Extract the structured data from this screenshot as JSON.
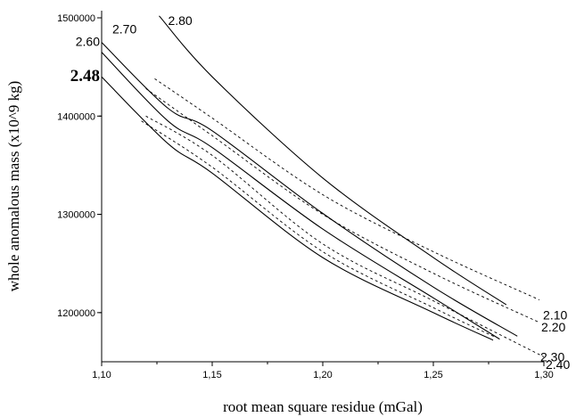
{
  "chart_data": {
    "type": "line",
    "xlabel": "root mean square residue (mGal)",
    "ylabel": "whole anomalous mass (x10^9  kg)",
    "xlim": [
      1.1,
      1.3
    ],
    "ylim": [
      1150000,
      1500000
    ],
    "x_ticks": [
      1.1,
      1.15,
      1.2,
      1.25,
      1.3
    ],
    "x_tick_labels": [
      "1,10",
      "1,15",
      "1,20",
      "1,25",
      "1,30"
    ],
    "y_ticks": [
      1200000,
      1300000,
      1400000,
      1500000
    ],
    "y_tick_labels": [
      "1200000",
      "1300000",
      "1400000",
      "1500000"
    ],
    "grid": false,
    "series": [
      {
        "name": "2.80",
        "style": "solid",
        "label_bold": false,
        "x": [
          1.126,
          1.15,
          1.2,
          1.25,
          1.283
        ],
        "y": [
          1502000,
          1440000,
          1337000,
          1256000,
          1208000
        ]
      },
      {
        "name": "2.70",
        "style": "solid",
        "label_bold": false,
        "x": [
          1.1,
          1.13,
          1.15,
          1.2,
          1.25,
          1.288
        ],
        "y": [
          1475000,
          1408000,
          1385000,
          1301000,
          1226000,
          1176000
        ]
      },
      {
        "name": "2.60",
        "style": "solid",
        "label_bold": false,
        "x": [
          1.1,
          1.13,
          1.15,
          1.2,
          1.25,
          1.28
        ],
        "y": [
          1465000,
          1395000,
          1368000,
          1285000,
          1215000,
          1173000
        ]
      },
      {
        "name": "2.48",
        "style": "solid",
        "label_bold": true,
        "x": [
          1.1,
          1.13,
          1.15,
          1.2,
          1.25,
          1.277
        ],
        "y": [
          1440000,
          1372000,
          1342000,
          1256000,
          1200000,
          1172000
        ]
      },
      {
        "name": "2.10",
        "style": "dashed",
        "label_bold": false,
        "x": [
          1.124,
          1.15,
          1.2,
          1.25,
          1.298
        ],
        "y": [
          1438000,
          1398000,
          1320000,
          1262000,
          1213000
        ]
      },
      {
        "name": "2.20",
        "style": "dashed",
        "label_bold": false,
        "x": [
          1.12,
          1.15,
          1.2,
          1.25,
          1.298
        ],
        "y": [
          1428000,
          1380000,
          1300000,
          1240000,
          1190000
        ]
      },
      {
        "name": "2.30",
        "style": "dashed",
        "label_bold": false,
        "x": [
          1.12,
          1.15,
          1.2,
          1.25,
          1.3
        ],
        "y": [
          1400000,
          1360000,
          1270000,
          1212000,
          1155000
        ]
      },
      {
        "name": "2.40",
        "style": "dashed",
        "label_bold": false,
        "x": [
          1.118,
          1.15,
          1.2,
          1.25,
          1.278
        ],
        "y": [
          1395000,
          1348000,
          1262000,
          1205000,
          1175000
        ]
      }
    ]
  }
}
